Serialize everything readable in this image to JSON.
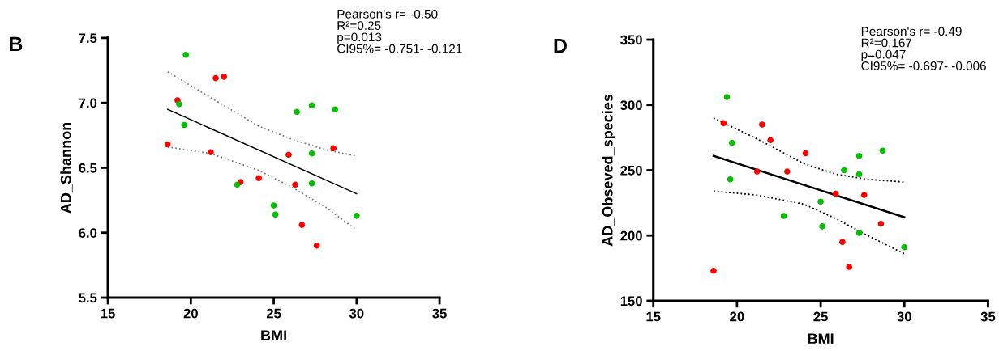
{
  "chart_data": [
    {
      "type": "scatter",
      "title": "B",
      "xlabel": "BMI",
      "ylabel": "AD_Shannon",
      "annotations": [
        "Pearson's r= -0.50\nR²=0.25\np=0.013\nCI95%= -0.751- -0.121"
      ],
      "xlim": [
        15,
        35
      ],
      "xticks": [
        15,
        20,
        25,
        30,
        35
      ],
      "ylim": [
        5.5,
        7.5
      ],
      "yticks": [
        {
          "value": 5.5,
          "label": "5.5"
        },
        {
          "value": 6.0,
          "label": "6.0"
        },
        {
          "value": 6.5,
          "label": "6.5"
        },
        {
          "value": 7.0,
          "label": "7.0"
        },
        {
          "value": 7.5,
          "label": "7.5"
        }
      ],
      "grid": false,
      "legend": false,
      "series": [
        {
          "color": "#ff0000",
          "marker": "circle",
          "x": [
            18.6,
            19.2,
            21.5,
            22.0,
            21.2,
            23.0,
            24.1,
            25.9,
            26.3,
            26.7,
            27.6,
            28.6
          ],
          "values": [
            6.68,
            7.02,
            7.19,
            7.2,
            6.62,
            6.39,
            6.42,
            6.6,
            6.37,
            6.06,
            5.9,
            6.65
          ]
        },
        {
          "color": "#00c000",
          "marker": "circle",
          "x": [
            19.7,
            19.3,
            19.6,
            22.8,
            25.0,
            25.1,
            26.4,
            27.3,
            28.7,
            27.3,
            27.3,
            30.0
          ],
          "values": [
            7.37,
            6.99,
            6.83,
            6.37,
            6.21,
            6.14,
            6.93,
            6.98,
            6.95,
            6.61,
            6.38,
            6.13
          ]
        },
        {
          "type": "line",
          "color": "#000000",
          "line_style": "solid",
          "x": [
            18.6,
            30.0
          ],
          "values": [
            6.95,
            6.3
          ]
        },
        {
          "type": "line",
          "color": "#808080",
          "line_style": "dotted",
          "x": [
            18.6,
            21.2,
            24.1,
            26.1,
            28.1,
            30.0
          ],
          "values": [
            7.24,
            7.04,
            6.82,
            6.72,
            6.64,
            6.59
          ]
        },
        {
          "type": "line",
          "color": "#808080",
          "line_style": "dotted",
          "x": [
            18.6,
            21.2,
            24.1,
            26.1,
            28.1,
            30.0
          ],
          "values": [
            6.66,
            6.61,
            6.48,
            6.35,
            6.2,
            6.02
          ]
        }
      ]
    },
    {
      "type": "scatter",
      "title": "D",
      "xlabel": "BMI",
      "ylabel": "AD_Obseved_species",
      "annotations": [
        "Pearson's r= -0.49\nR²=0.167\np=0.047\nCI95%= -0.697- -0.006"
      ],
      "xlim": [
        15,
        35
      ],
      "xticks": [
        15,
        20,
        25,
        30,
        35
      ],
      "ylim": [
        150,
        350
      ],
      "yticks": [
        150,
        200,
        250,
        300,
        350
      ],
      "grid": false,
      "legend": false,
      "series": [
        {
          "color": "#ff0000",
          "marker": "circle",
          "x": [
            18.6,
            19.2,
            21.5,
            22.0,
            21.2,
            23.0,
            24.1,
            25.9,
            26.3,
            26.7,
            27.6,
            28.6
          ],
          "values": [
            173,
            286,
            285,
            273,
            249,
            249,
            263,
            232,
            195,
            176,
            231,
            209
          ]
        },
        {
          "color": "#00c000",
          "marker": "circle",
          "x": [
            19.4,
            19.7,
            19.6,
            22.8,
            25.0,
            25.1,
            26.4,
            27.3,
            27.3,
            27.3,
            28.7,
            30.0
          ],
          "values": [
            306,
            271,
            243,
            215,
            226,
            207,
            250,
            261,
            247,
            202,
            265,
            191
          ]
        },
        {
          "type": "line",
          "color": "#000000",
          "line_style": "solid",
          "x": [
            18.6,
            30.0
          ],
          "values": [
            261,
            214
          ]
        },
        {
          "type": "line",
          "color": "#000000",
          "line_style": "dotted",
          "x": [
            18.6,
            21.2,
            24.0,
            25.9,
            27.8,
            30.0
          ],
          "values": [
            290,
            274,
            255,
            247,
            243,
            241
          ]
        },
        {
          "type": "line",
          "color": "#000000",
          "line_style": "dotted",
          "x": [
            18.6,
            21.2,
            24.0,
            25.9,
            27.8,
            30.0
          ],
          "values": [
            234,
            231,
            224,
            213,
            200,
            186
          ]
        }
      ]
    }
  ]
}
